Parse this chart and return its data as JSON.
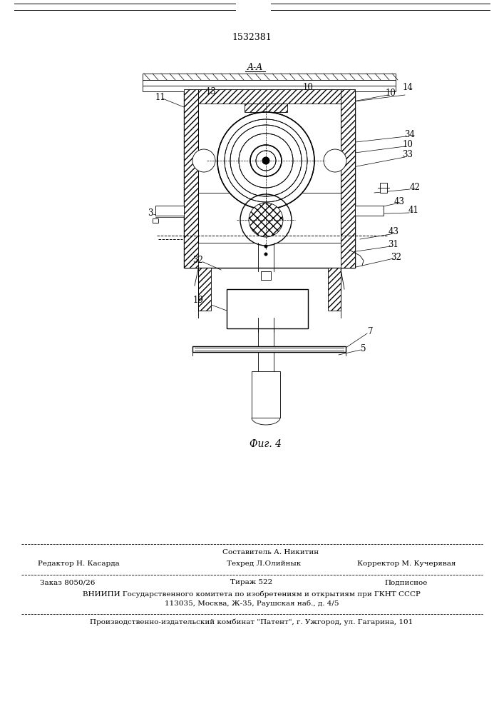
{
  "patent_number": "1532381",
  "fig_label": "Фиг. 4",
  "bg_color": "#ffffff",
  "line_color": "#000000",
  "footer": {
    "sestavitel": "Составитель А. Никитин",
    "redaktor": "Редактор Н. Касарда",
    "tehred": "Техред Л.Олийнык",
    "korrektor": "Корректор М. Кучерявая",
    "zakaz": "Заказ 8050/26",
    "tirazh": "Тираж 522",
    "podpisnoe": "Подписное",
    "vnipi_line1": "ВНИИПИ Государственного комитета по изобретениям и открытиям при ГКНТ СССР",
    "vnipi_line2": "113035, Москва, Ж-35, Раушская наб., д. 4/5",
    "proizv": "Производственно-издательский комбинат \"Патент\", г. Ужгород, ул. Гагарина, 101"
  }
}
